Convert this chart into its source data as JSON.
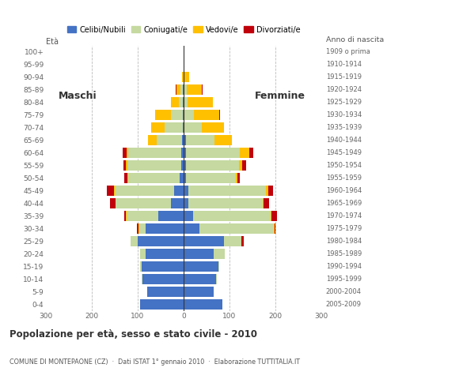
{
  "age_groups": [
    "100+",
    "95-99",
    "90-94",
    "85-89",
    "80-84",
    "75-79",
    "70-74",
    "65-69",
    "60-64",
    "55-59",
    "50-54",
    "45-49",
    "40-44",
    "35-39",
    "30-34",
    "25-29",
    "20-24",
    "15-19",
    "10-14",
    "5-9",
    "0-4"
  ],
  "birth_years": [
    "1909 o prima",
    "1910-1914",
    "1915-1919",
    "1920-1924",
    "1925-1929",
    "1930-1934",
    "1935-1939",
    "1940-1944",
    "1945-1949",
    "1950-1954",
    "1955-1959",
    "1960-1964",
    "1965-1969",
    "1970-1974",
    "1975-1979",
    "1980-1984",
    "1985-1989",
    "1990-1994",
    "1995-1999",
    "2000-2004",
    "2005-2009"
  ],
  "males_celibi": [
    0,
    0,
    0,
    2,
    2,
    2,
    2,
    3,
    5,
    5,
    8,
    20,
    28,
    55,
    82,
    100,
    82,
    92,
    90,
    80,
    95
  ],
  "males_coniugati": [
    0,
    0,
    0,
    5,
    8,
    25,
    40,
    55,
    115,
    118,
    112,
    130,
    120,
    70,
    15,
    15,
    12,
    2,
    2,
    0,
    0
  ],
  "males_vedovi": [
    0,
    0,
    3,
    8,
    18,
    35,
    28,
    20,
    5,
    3,
    2,
    2,
    1,
    1,
    1,
    0,
    0,
    0,
    0,
    0,
    0
  ],
  "males_divorziati": [
    0,
    0,
    0,
    2,
    0,
    0,
    0,
    0,
    8,
    5,
    8,
    15,
    12,
    3,
    3,
    0,
    0,
    0,
    0,
    0,
    0
  ],
  "females_nubili": [
    0,
    0,
    0,
    2,
    0,
    0,
    2,
    5,
    5,
    5,
    5,
    10,
    10,
    20,
    35,
    88,
    65,
    75,
    70,
    65,
    85
  ],
  "females_coniugate": [
    0,
    0,
    2,
    5,
    8,
    22,
    38,
    62,
    118,
    115,
    108,
    170,
    162,
    170,
    162,
    38,
    25,
    3,
    2,
    0,
    0
  ],
  "females_vedove": [
    0,
    2,
    10,
    32,
    55,
    55,
    48,
    38,
    20,
    8,
    5,
    5,
    2,
    2,
    1,
    0,
    0,
    0,
    0,
    0,
    0
  ],
  "females_divorziate": [
    0,
    0,
    0,
    2,
    0,
    2,
    0,
    0,
    8,
    8,
    5,
    10,
    12,
    12,
    2,
    5,
    0,
    0,
    0,
    0,
    0
  ],
  "color_celibi": "#4472c4",
  "color_coniugati": "#c5d9a0",
  "color_vedovi": "#ffc000",
  "color_divorziati": "#c0000b",
  "xlim": 300,
  "title": "Popolazione per età, sesso e stato civile - 2010",
  "subtitle": "COMUNE DI MONTEPAONE (CZ)  ·  Dati ISTAT 1° gennaio 2010  ·  Elaborazione TUTTITALIA.IT",
  "label_eta": "Età",
  "label_anno": "Anno di nascita",
  "label_maschi": "Maschi",
  "label_femmine": "Femmine",
  "legend_labels": [
    "Celibi/Nubili",
    "Coniugati/e",
    "Vedovi/e",
    "Divorziati/e"
  ],
  "bg_color": "#ffffff",
  "bar_height": 0.82
}
